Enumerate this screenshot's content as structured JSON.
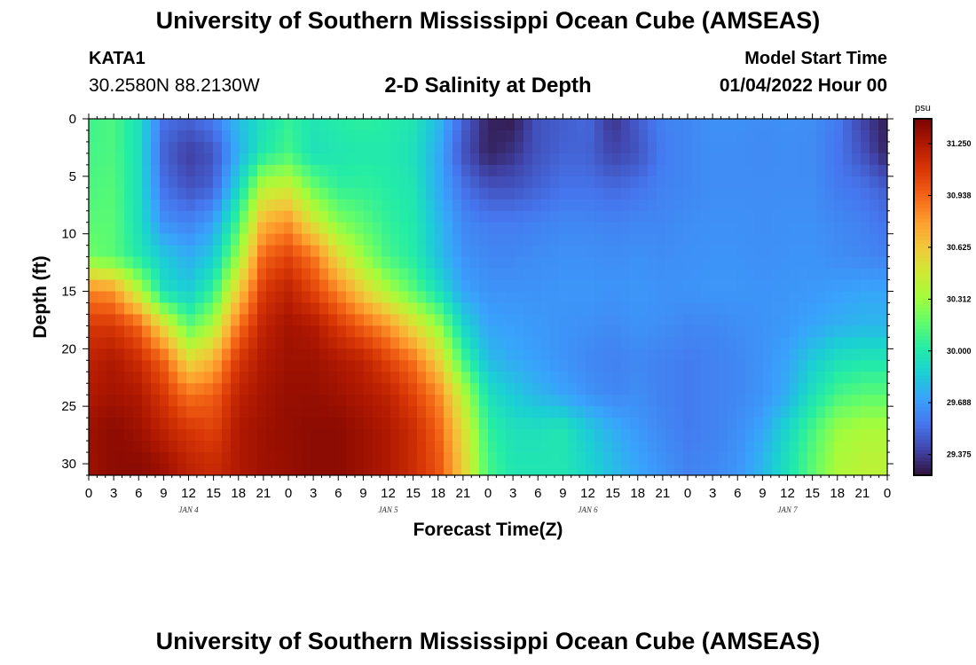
{
  "header": {
    "title": "University of Southern Mississippi Ocean Cube (AMSEAS)",
    "station": "KATA1",
    "coordinates": "30.2580N  88.2130W",
    "subtitle": "2-D Salinity at Depth",
    "model_label": "Model Start Time",
    "model_start": "01/04/2022 Hour 00"
  },
  "footer": {
    "title": "University of Southern Mississippi Ocean Cube (AMSEAS)"
  },
  "chart_data": {
    "type": "heatmap",
    "title": "2-D Salinity at Depth",
    "xlabel": "Forecast Time(Z)",
    "ylabel": "Depth (ft)",
    "x_range_hours": [
      0,
      96
    ],
    "y_range_ft": [
      0,
      31
    ],
    "x_tick_labels": [
      "0",
      "3",
      "6",
      "9",
      "12",
      "15",
      "18",
      "21",
      "0",
      "3",
      "6",
      "9",
      "12",
      "15",
      "18",
      "21",
      "0",
      "3",
      "6",
      "9",
      "12",
      "15",
      "18",
      "21",
      "0",
      "3",
      "6",
      "9",
      "12",
      "15",
      "18",
      "21",
      "0"
    ],
    "y_ticks": [
      0,
      5,
      10,
      15,
      20,
      25,
      30
    ],
    "day_labels": [
      {
        "text": "JAN 4",
        "hour": 12
      },
      {
        "text": "JAN 5",
        "hour": 36
      },
      {
        "text": "JAN 6",
        "hour": 60
      },
      {
        "text": "JAN 7",
        "hour": 84
      }
    ],
    "colorbar": {
      "unit": "psu",
      "min": 29.25,
      "max": 31.4,
      "tick_labels": [
        "31.250",
        "30.938",
        "30.625",
        "30.312",
        "30.000",
        "29.688",
        "29.375"
      ],
      "tick_values": [
        31.25,
        30.938,
        30.625,
        30.312,
        30.0,
        29.688,
        29.375
      ],
      "colors": [
        "#30123b",
        "#4145ab",
        "#4675ed",
        "#39a2fc",
        "#1bcfd4",
        "#24eca6",
        "#61fc6c",
        "#a4fc3b",
        "#d1e834",
        "#f3c63a",
        "#fe9b2d",
        "#f36315",
        "#d93806",
        "#b11901",
        "#7a0402"
      ]
    },
    "field": {
      "description": "Salinity (psu) sampled on a grid; times in forecast hours, depths in ft",
      "times": [
        0,
        3,
        6,
        9,
        12,
        15,
        18,
        21,
        24,
        27,
        30,
        33,
        36,
        39,
        42,
        45,
        48,
        51,
        54,
        57,
        60,
        63,
        66,
        69,
        72,
        75,
        78,
        81,
        84,
        87,
        90,
        93,
        96
      ],
      "depths": [
        0,
        3,
        6,
        9,
        12,
        15,
        18,
        21,
        24,
        27,
        30
      ],
      "values": [
        [
          30.08,
          30.12,
          29.95,
          29.55,
          29.5,
          29.58,
          29.8,
          29.95,
          30.05,
          29.98,
          30.02,
          30.04,
          30.02,
          29.98,
          29.8,
          29.5,
          29.3,
          29.28,
          29.45,
          29.48,
          29.52,
          29.35,
          29.48,
          29.6,
          29.62,
          29.65,
          29.65,
          29.64,
          29.65,
          29.64,
          29.58,
          29.4,
          29.28
        ],
        [
          30.1,
          30.12,
          29.95,
          29.5,
          29.38,
          29.45,
          29.75,
          30.0,
          30.1,
          29.95,
          29.98,
          30.0,
          30.0,
          29.95,
          29.75,
          29.45,
          29.3,
          29.35,
          29.45,
          29.5,
          29.5,
          29.4,
          29.45,
          29.58,
          29.62,
          29.64,
          29.64,
          29.63,
          29.64,
          29.63,
          29.56,
          29.45,
          29.3
        ],
        [
          30.12,
          30.14,
          29.95,
          29.55,
          29.45,
          29.5,
          29.9,
          30.4,
          30.45,
          30.2,
          30.05,
          30.05,
          30.02,
          29.98,
          29.75,
          29.55,
          29.45,
          29.45,
          29.5,
          29.55,
          29.55,
          29.52,
          29.55,
          29.6,
          29.62,
          29.64,
          29.64,
          29.64,
          29.64,
          29.64,
          29.58,
          29.55,
          29.48
        ],
        [
          30.15,
          30.15,
          29.95,
          29.65,
          29.6,
          29.7,
          30.1,
          30.7,
          30.8,
          30.5,
          30.25,
          30.15,
          30.05,
          30.0,
          29.8,
          29.62,
          29.58,
          29.58,
          29.6,
          29.62,
          29.62,
          29.6,
          29.62,
          29.62,
          29.64,
          29.65,
          29.65,
          29.64,
          29.65,
          29.65,
          29.62,
          29.6,
          29.55
        ],
        [
          30.2,
          30.15,
          30.0,
          29.85,
          29.75,
          29.85,
          30.3,
          30.95,
          31.05,
          30.9,
          30.55,
          30.3,
          30.1,
          30.02,
          29.82,
          29.66,
          29.62,
          29.62,
          29.64,
          29.65,
          29.65,
          29.64,
          29.65,
          29.64,
          29.65,
          29.66,
          29.66,
          29.65,
          29.66,
          29.66,
          29.64,
          29.62,
          29.6
        ],
        [
          30.85,
          30.8,
          30.4,
          29.95,
          29.85,
          30.05,
          30.6,
          31.1,
          31.2,
          31.05,
          30.85,
          30.6,
          30.35,
          30.15,
          29.95,
          29.72,
          29.66,
          29.66,
          29.66,
          29.67,
          29.67,
          29.66,
          29.67,
          29.66,
          29.66,
          29.67,
          29.67,
          29.66,
          29.67,
          29.68,
          29.7,
          29.72,
          29.72
        ],
        [
          31.1,
          31.1,
          30.95,
          30.55,
          30.15,
          30.35,
          30.9,
          31.2,
          31.28,
          31.25,
          31.1,
          30.95,
          30.8,
          30.55,
          30.3,
          29.9,
          29.72,
          29.7,
          29.68,
          29.66,
          29.65,
          29.63,
          29.66,
          29.64,
          29.62,
          29.62,
          29.64,
          29.66,
          29.68,
          29.72,
          29.76,
          29.78,
          29.78
        ],
        [
          31.2,
          31.25,
          31.15,
          30.95,
          30.55,
          30.7,
          31.1,
          31.25,
          31.3,
          31.3,
          31.25,
          31.2,
          31.05,
          30.9,
          30.6,
          30.1,
          29.8,
          29.74,
          29.7,
          29.66,
          29.62,
          29.6,
          29.62,
          29.6,
          29.58,
          29.6,
          29.62,
          29.66,
          29.72,
          29.85,
          29.95,
          29.98,
          29.98
        ],
        [
          31.25,
          31.28,
          31.25,
          31.1,
          30.9,
          30.95,
          31.2,
          31.28,
          31.32,
          31.32,
          31.3,
          31.25,
          31.2,
          31.05,
          30.85,
          30.4,
          29.95,
          29.85,
          29.78,
          29.72,
          29.66,
          29.62,
          29.64,
          29.6,
          29.58,
          29.6,
          29.62,
          29.66,
          29.75,
          29.95,
          30.1,
          30.15,
          30.15
        ],
        [
          31.3,
          31.35,
          31.3,
          31.2,
          31.1,
          31.05,
          31.25,
          31.3,
          31.33,
          31.35,
          31.35,
          31.3,
          31.25,
          31.15,
          30.95,
          30.55,
          30.05,
          29.95,
          29.95,
          29.98,
          29.85,
          29.75,
          29.68,
          29.62,
          29.58,
          29.6,
          29.64,
          29.72,
          29.9,
          30.1,
          30.3,
          30.35,
          30.35
        ],
        [
          31.3,
          31.35,
          31.35,
          31.3,
          31.2,
          31.15,
          31.25,
          31.3,
          31.32,
          31.35,
          31.35,
          31.3,
          31.25,
          31.15,
          31.0,
          30.6,
          30.1,
          29.98,
          29.98,
          29.98,
          29.9,
          29.8,
          29.72,
          29.66,
          29.6,
          29.62,
          29.66,
          29.78,
          29.95,
          30.15,
          30.35,
          30.4,
          30.4
        ]
      ]
    }
  }
}
